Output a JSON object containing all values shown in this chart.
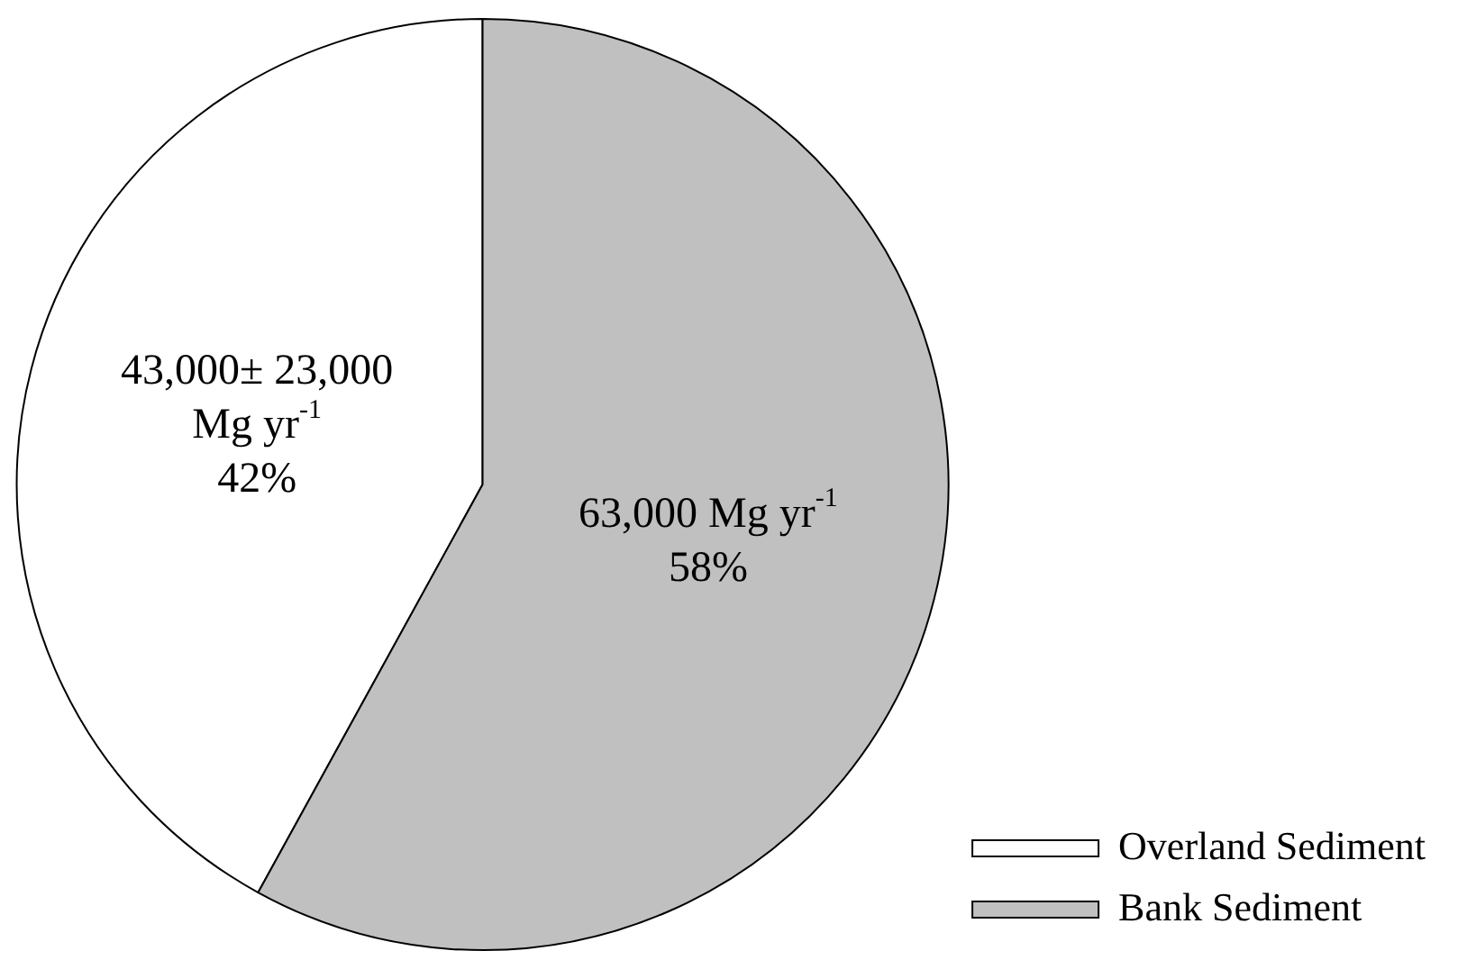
{
  "chart_data": {
    "type": "pie",
    "categories": [
      "Overland Sediment",
      "Bank Sediment"
    ],
    "values": [
      42,
      58
    ],
    "colors": [
      "#ffffff",
      "#c0c0c0"
    ],
    "value_labels": [
      "43,000± 23,000\nMg yr$^{-1}$\n42%",
      "63,000 Mg yr$^{-1}$\n58%"
    ],
    "legend": "bottom right"
  }
}
